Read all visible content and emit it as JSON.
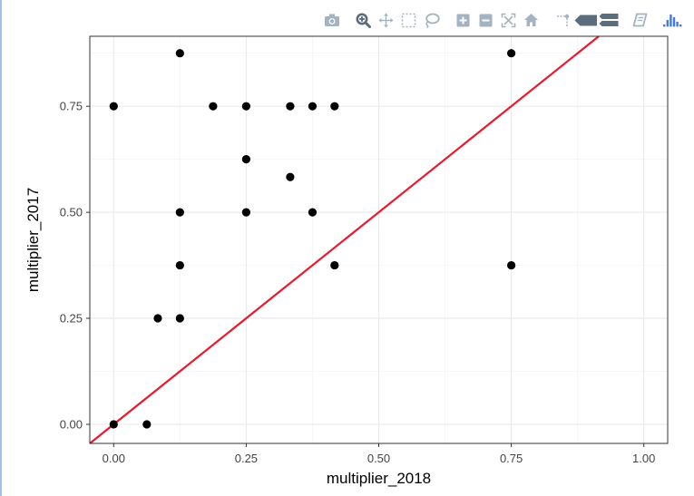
{
  "toolbar": {
    "buttons": [
      {
        "name": "camera-icon",
        "label": "Download plot as a png"
      },
      {
        "name": "zoom-icon",
        "label": "Zoom"
      },
      {
        "name": "pan-icon",
        "label": "Pan"
      },
      {
        "name": "box-select-icon",
        "label": "Box Select"
      },
      {
        "name": "lasso-select-icon",
        "label": "Lasso Select"
      },
      {
        "name": "zoom-in-icon",
        "label": "Zoom in"
      },
      {
        "name": "zoom-out-icon",
        "label": "Zoom out"
      },
      {
        "name": "autoscale-icon",
        "label": "Autoscale"
      },
      {
        "name": "home-icon",
        "label": "Reset axes"
      },
      {
        "name": "spike-lines-icon",
        "label": "Toggle Spike Lines"
      },
      {
        "name": "hover-closest-icon",
        "label": "Show closest data on hover"
      },
      {
        "name": "hover-compare-icon",
        "label": "Compare data on hover"
      },
      {
        "name": "edit-chart-icon",
        "label": "Edit in Chart Studio"
      },
      {
        "name": "plotly-logo-icon",
        "label": "Produced with Plotly"
      }
    ],
    "icon_color": "#a3b3c2",
    "active_color": "#5c6d7e",
    "logo_color": "#447adb"
  },
  "chart_data": {
    "type": "scatter",
    "xlabel": "multiplier_2018",
    "ylabel": "multiplier_2017",
    "xlim": [
      -0.045,
      1.045
    ],
    "ylim": [
      -0.045,
      0.915
    ],
    "x_ticks": [
      0,
      0.25,
      0.5,
      0.75,
      1
    ],
    "x_tick_labels": [
      "0.00",
      "0.25",
      "0.50",
      "0.75",
      "1.00"
    ],
    "y_ticks": [
      0,
      0.25,
      0.5,
      0.75
    ],
    "y_tick_labels": [
      "0.00",
      "0.25",
      "0.50",
      "0.75"
    ],
    "grid": true,
    "points": [
      {
        "x": 0.0,
        "y": 0.75
      },
      {
        "x": 0.125,
        "y": 0.875
      },
      {
        "x": 0.75,
        "y": 0.875
      },
      {
        "x": 0.1875,
        "y": 0.75
      },
      {
        "x": 0.25,
        "y": 0.75
      },
      {
        "x": 0.333,
        "y": 0.75
      },
      {
        "x": 0.375,
        "y": 0.75
      },
      {
        "x": 0.4167,
        "y": 0.75
      },
      {
        "x": 0.25,
        "y": 0.625
      },
      {
        "x": 0.333,
        "y": 0.583
      },
      {
        "x": 0.125,
        "y": 0.5
      },
      {
        "x": 0.25,
        "y": 0.5
      },
      {
        "x": 0.375,
        "y": 0.5
      },
      {
        "x": 0.125,
        "y": 0.375
      },
      {
        "x": 0.4167,
        "y": 0.375
      },
      {
        "x": 0.75,
        "y": 0.375
      },
      {
        "x": 0.0833,
        "y": 0.25
      },
      {
        "x": 0.125,
        "y": 0.25
      },
      {
        "x": 0.0,
        "y": 0.0
      },
      {
        "x": 0.0625,
        "y": 0.0
      }
    ],
    "reference_line": {
      "slope": 1,
      "intercept": 0,
      "color": "#e8192c"
    },
    "point_color": "#000000",
    "grid_color": "#ebebeb",
    "frame_color": "#333333"
  }
}
